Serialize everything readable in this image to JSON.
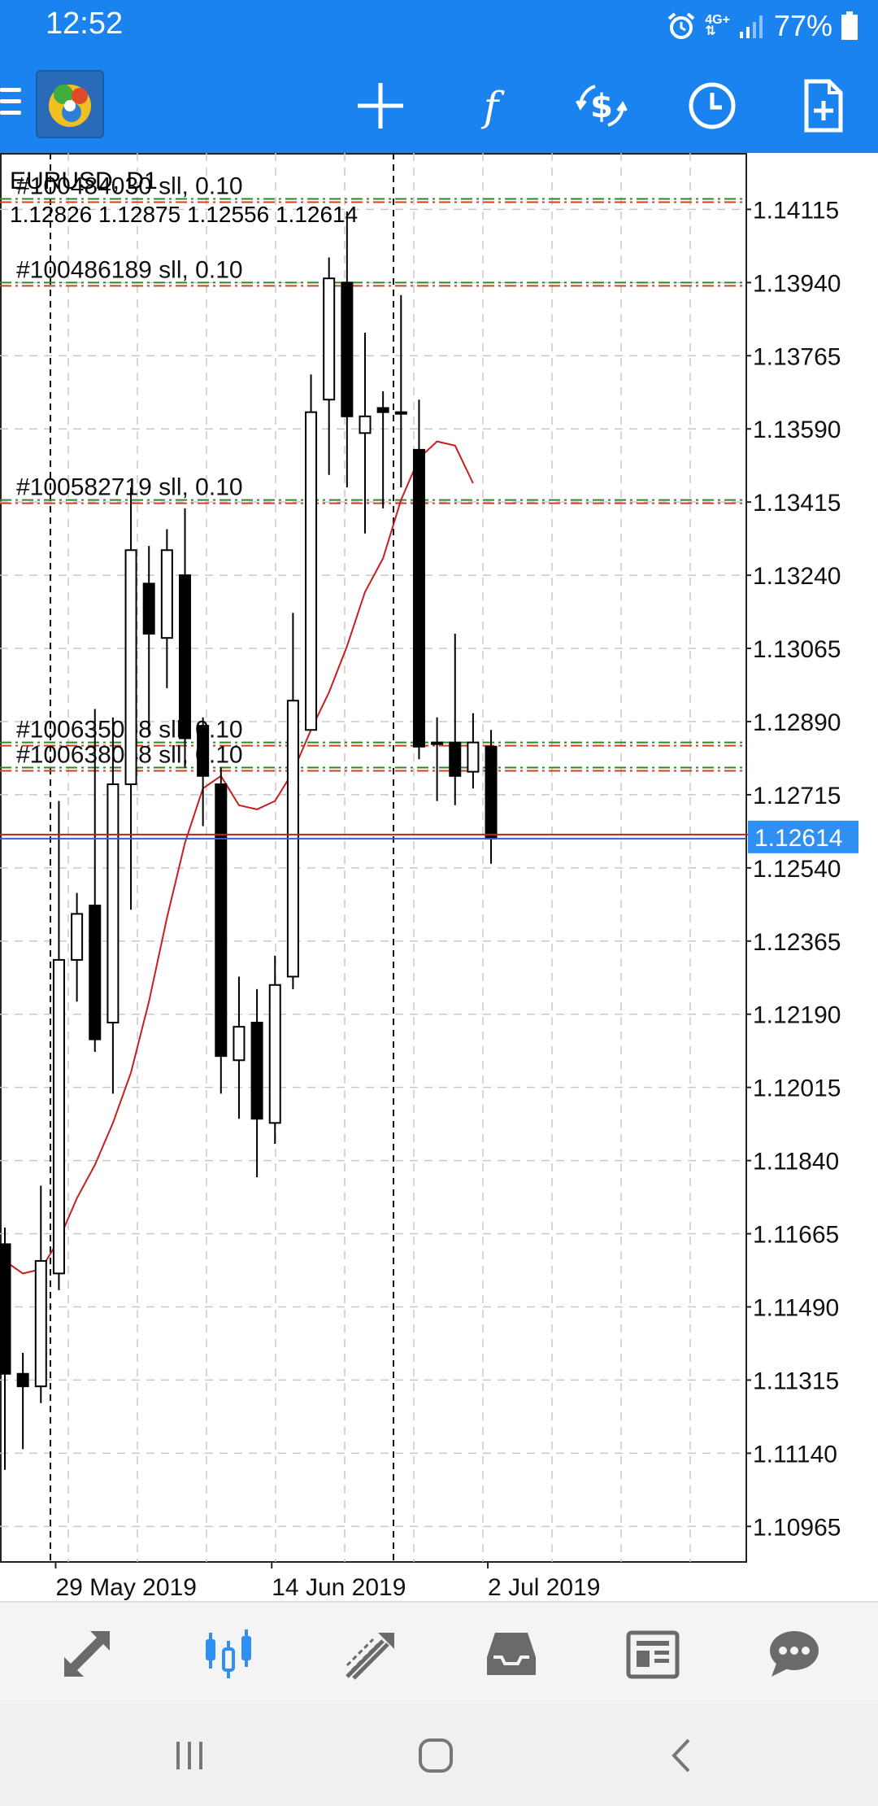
{
  "status_bar": {
    "time": "12:52",
    "network": "4G+",
    "battery": "77%",
    "icons": [
      "alarm-icon",
      "signal-icon",
      "battery-icon"
    ]
  },
  "toolbar": {
    "app": "MetaTrader 4",
    "icons": [
      "menu-icon",
      "crosshair-icon",
      "indicators-f-icon",
      "trade-dollar-icon",
      "timeframe-clock-icon",
      "new-order-icon"
    ]
  },
  "chart": {
    "symbol": "EURUSD, D1",
    "ohlc": "1.12826 1.12875 1.12556 1.12614",
    "current_price": "1.12614",
    "colors": {
      "grid": "#c8c8c8",
      "ma_line": "#c81e1e",
      "bid_line": "#c81e1e",
      "ask_line": "#3c5ad2",
      "price_tag": "#2f8ff2",
      "sl_line": "#d04020",
      "tp_line": "#2a8a2a"
    }
  },
  "chart_data": {
    "type": "candlestick",
    "ylim": [
      1.1088,
      1.1425
    ],
    "y_ticks": [
      "1.14115",
      "1.13940",
      "1.13765",
      "1.13590",
      "1.13415",
      "1.13240",
      "1.13065",
      "1.12890",
      "1.12715",
      "1.12540",
      "1.12365",
      "1.12190",
      "1.12015",
      "1.11840",
      "1.11665",
      "1.11490",
      "1.11315",
      "1.11140",
      "1.10965"
    ],
    "y_tick_values": [
      1.14115,
      1.1394,
      1.13765,
      1.1359,
      1.13415,
      1.1324,
      1.13065,
      1.1289,
      1.12715,
      1.1254,
      1.12365,
      1.1219,
      1.12015,
      1.1184,
      1.11665,
      1.1149,
      1.11315,
      1.1114,
      1.10965
    ],
    "x_labels": [
      {
        "label": "29 May 2019",
        "index": 3
      },
      {
        "label": "14 Jun 2019",
        "index": 15
      },
      {
        "label": "2 Jul 2019",
        "index": 27
      }
    ],
    "candles": [
      {
        "o": 1.1164,
        "h": 1.1168,
        "l": 1.111,
        "c": 1.1133
      },
      {
        "o": 1.1133,
        "h": 1.1138,
        "l": 1.1115,
        "c": 1.113
      },
      {
        "o": 1.113,
        "h": 1.1178,
        "l": 1.1126,
        "c": 1.116
      },
      {
        "o": 1.1157,
        "h": 1.127,
        "l": 1.1153,
        "c": 1.1232
      },
      {
        "o": 1.1232,
        "h": 1.1248,
        "l": 1.1222,
        "c": 1.1243
      },
      {
        "o": 1.1245,
        "h": 1.1292,
        "l": 1.121,
        "c": 1.1213
      },
      {
        "o": 1.1217,
        "h": 1.129,
        "l": 1.12,
        "c": 1.1274
      },
      {
        "o": 1.1274,
        "h": 1.1345,
        "l": 1.1244,
        "c": 1.133
      },
      {
        "o": 1.1322,
        "h": 1.1331,
        "l": 1.1286,
        "c": 1.131
      },
      {
        "o": 1.1309,
        "h": 1.1335,
        "l": 1.1297,
        "c": 1.133
      },
      {
        "o": 1.1324,
        "h": 1.134,
        "l": 1.1278,
        "c": 1.1285
      },
      {
        "o": 1.1288,
        "h": 1.129,
        "l": 1.1264,
        "c": 1.1276
      },
      {
        "o": 1.1274,
        "h": 1.1278,
        "l": 1.12,
        "c": 1.1209
      },
      {
        "o": 1.1208,
        "h": 1.1228,
        "l": 1.1194,
        "c": 1.1216
      },
      {
        "o": 1.1217,
        "h": 1.1225,
        "l": 1.118,
        "c": 1.1194
      },
      {
        "o": 1.1193,
        "h": 1.1233,
        "l": 1.1188,
        "c": 1.1226
      },
      {
        "o": 1.1228,
        "h": 1.1315,
        "l": 1.1225,
        "c": 1.1294
      },
      {
        "o": 1.1287,
        "h": 1.1372,
        "l": 1.1287,
        "c": 1.1363
      },
      {
        "o": 1.1366,
        "h": 1.14,
        "l": 1.1348,
        "c": 1.1395
      },
      {
        "o": 1.1394,
        "h": 1.1411,
        "l": 1.1345,
        "c": 1.1362
      },
      {
        "o": 1.1358,
        "h": 1.1382,
        "l": 1.1334,
        "c": 1.1362
      },
      {
        "o": 1.1364,
        "h": 1.1368,
        "l": 1.134,
        "c": 1.1363
      },
      {
        "o": 1.1363,
        "h": 1.1391,
        "l": 1.1345,
        "c": 1.1363
      },
      {
        "o": 1.1354,
        "h": 1.1366,
        "l": 1.128,
        "c": 1.1283
      },
      {
        "o": 1.1284,
        "h": 1.129,
        "l": 1.127,
        "c": 1.1284
      },
      {
        "o": 1.1284,
        "h": 1.131,
        "l": 1.1269,
        "c": 1.1276
      },
      {
        "o": 1.1277,
        "h": 1.1291,
        "l": 1.1273,
        "c": 1.1284
      },
      {
        "o": 1.1283,
        "h": 1.1287,
        "l": 1.1255,
        "c": 1.1261
      }
    ],
    "ma": [
      1.116,
      1.1157,
      1.1158,
      1.1165,
      1.1175,
      1.1183,
      1.1193,
      1.1205,
      1.1222,
      1.1242,
      1.126,
      1.1273,
      1.1276,
      1.1269,
      1.1268,
      1.127,
      1.1277,
      1.1287,
      1.1296,
      1.1307,
      1.132,
      1.1328,
      1.1342,
      1.1352,
      1.1356,
      1.1355,
      1.1346
    ],
    "order_lines": [
      {
        "label": "#100484030 sll, 0.10",
        "price": 1.1414
      },
      {
        "label": "#100486189 sll, 0.10",
        "price": 1.1394
      },
      {
        "label": "#100582719 sll, 0.10",
        "price": 1.1342
      },
      {
        "label": "#100635068 sll, 0.10",
        "price": 1.1284
      },
      {
        "label": "#100638048 sll, 0.10",
        "price": 1.1278
      }
    ]
  },
  "bottom_nav": {
    "items": [
      {
        "name": "quotes-icon",
        "active": false
      },
      {
        "name": "chart-icon",
        "active": true
      },
      {
        "name": "trade-icon",
        "active": false
      },
      {
        "name": "history-icon",
        "active": false
      },
      {
        "name": "news-icon",
        "active": false
      },
      {
        "name": "messages-icon",
        "active": false
      }
    ]
  },
  "system_nav": [
    "recent-apps-icon",
    "home-icon",
    "back-icon"
  ]
}
